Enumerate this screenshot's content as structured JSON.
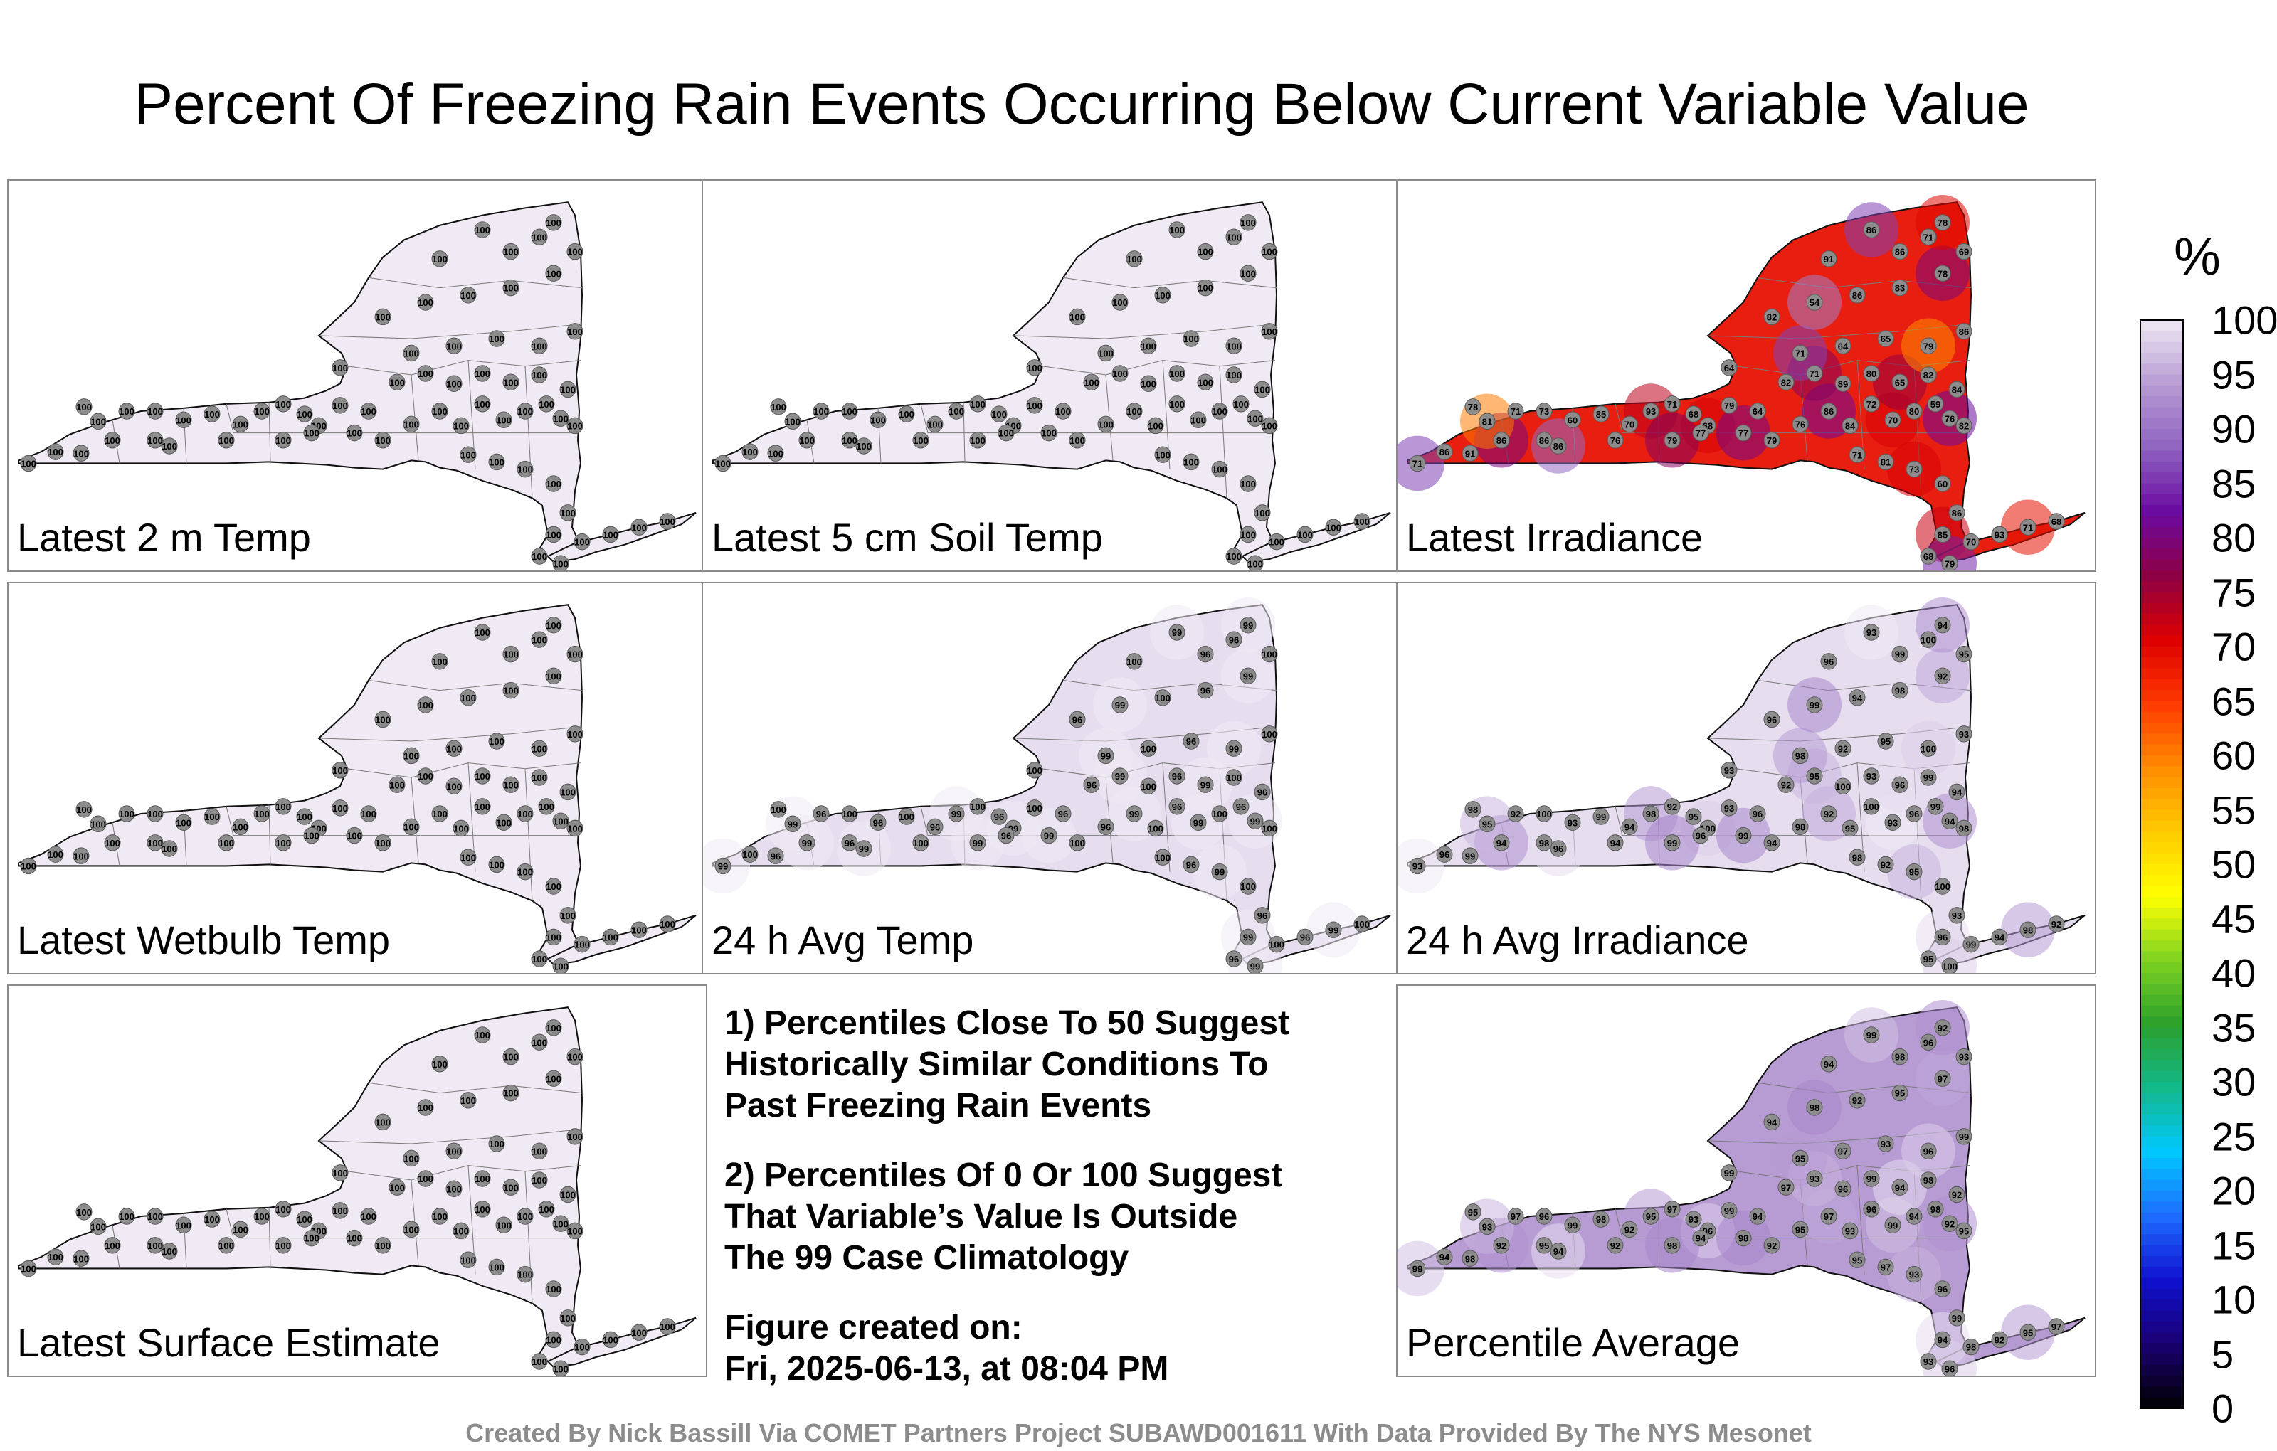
{
  "title": "Percent Of Freezing Rain Events Occurring Below Current Variable Value",
  "panels": [
    {
      "id": "p1",
      "label": "Latest 2 m Temp",
      "fill": "#efeaf3",
      "values": [
        100
      ]
    },
    {
      "id": "p2",
      "label": "Latest 5 cm Soil Temp",
      "fill": "#efeaf3",
      "values": [
        100
      ]
    },
    {
      "id": "p3",
      "label": "Latest Irradiance",
      "fill": "#e81f10",
      "values": [
        86,
        82,
        71,
        79,
        65,
        85,
        82,
        86,
        76,
        79,
        70,
        71,
        91,
        86,
        86,
        93,
        89,
        86,
        84,
        82,
        71,
        80,
        78,
        72,
        54,
        68,
        65,
        71,
        70,
        86,
        68,
        82,
        81,
        80,
        83,
        79,
        84,
        73,
        59,
        78,
        64,
        71,
        60,
        76,
        69,
        77,
        64
      ]
    },
    {
      "id": "p4",
      "label": "Latest Wetbulb Temp",
      "fill": "#efeaf3",
      "values": [
        100
      ]
    },
    {
      "id": "p5",
      "label": "24 h Avg Temp",
      "fill": "#e6ddef",
      "values": [
        100,
        99,
        96
      ]
    },
    {
      "id": "p6",
      "label": "24 h Avg Irradiance",
      "fill": "#e6ddef",
      "values": [
        100,
        98,
        96,
        95,
        94,
        93,
        92,
        99
      ]
    },
    {
      "id": "p7",
      "label": "Latest Surface Estimate",
      "fill": "#efeaf3",
      "values": [
        100
      ]
    },
    {
      "id": "p8",
      "label": "Percentile Average",
      "fill": "#b79bd3",
      "values": [
        97,
        98,
        96,
        95,
        94,
        93,
        92,
        99
      ]
    }
  ],
  "notes": {
    "note1": "1) Percentiles Close To 50 Suggest\nHistorically Similar Conditions To\nPast Freezing Rain Events",
    "note2": "2) Percentiles Of 0 Or 100 Suggest\nThat Variable’s Value Is Outside\nThe 99 Case Climatology",
    "created_heading": "Figure created on:",
    "created_date": "Fri, 2025-06-13, at 08:04 PM"
  },
  "colorbar": {
    "unit": "%",
    "ticks": [
      "100",
      "95",
      "90",
      "85",
      "80",
      "75",
      "70",
      "65",
      "60",
      "55",
      "50",
      "45",
      "40",
      "35",
      "30",
      "25",
      "20",
      "15",
      "10",
      "5",
      "0"
    ],
    "stops": [
      "#000000",
      "#1a0070",
      "#1010d0",
      "#1e6cff",
      "#00c8ff",
      "#12b98a",
      "#2ca02c",
      "#7ed321",
      "#ffff00",
      "#ffcc00",
      "#ff8c00",
      "#ff3a00",
      "#dd0000",
      "#8e0044",
      "#6a0aa0",
      "#8e63c0",
      "#b79bd3",
      "#efe9f4"
    ]
  },
  "footer": "Created By Nick Bassill Via COMET Partners Project SUBAWD001611 With Data Provided By The NYS Mesonet"
}
